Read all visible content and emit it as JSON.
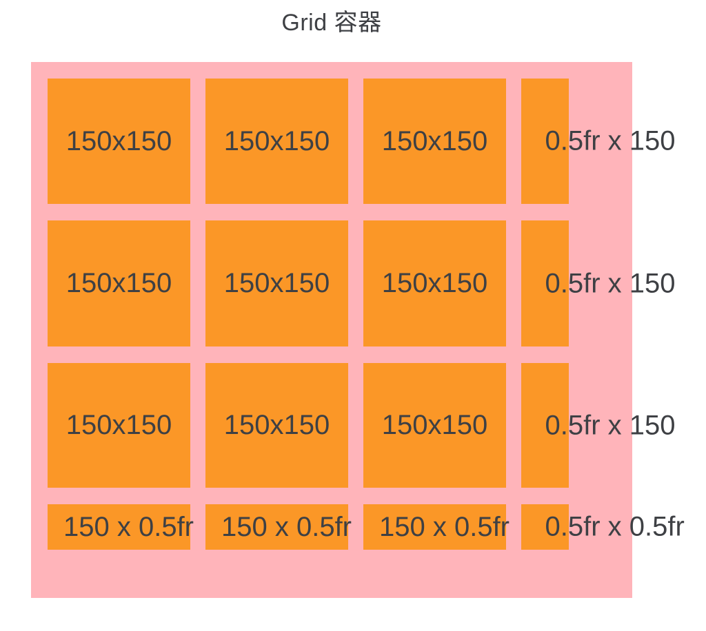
{
  "title": "Grid 容器",
  "colors": {
    "page_background": "#ffffff",
    "container_background": "#ffb4ba",
    "item_background": "#fb9727",
    "text": "#3e4044"
  },
  "grid": {
    "items": [
      {
        "label": "150x150"
      },
      {
        "label": "150x150"
      },
      {
        "label": "150x150"
      },
      {
        "label": "0.5fr x 150"
      },
      {
        "label": "150x150"
      },
      {
        "label": "150x150"
      },
      {
        "label": "150x150"
      },
      {
        "label": "0.5fr x 150"
      },
      {
        "label": "150x150"
      },
      {
        "label": "150x150"
      },
      {
        "label": "150x150"
      },
      {
        "label": "0.5fr x 150"
      },
      {
        "label": "150 x 0.5fr"
      },
      {
        "label": "150 x 0.5fr"
      },
      {
        "label": "150 x 0.5fr"
      },
      {
        "label": "0.5fr x 0.5fr"
      }
    ]
  }
}
